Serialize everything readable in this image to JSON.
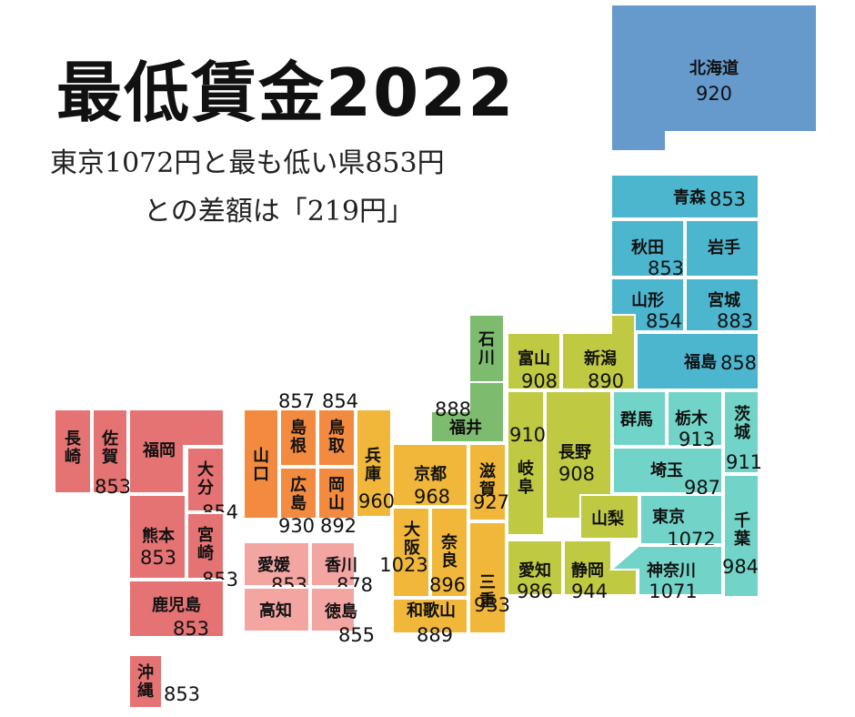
{
  "title": "最低賃金2022",
  "subtitle_line1": "東京1072円と最も低い県853円",
  "subtitle_line2": "との差額は「219円」",
  "colors": {
    "hokkaido": "#6699cc",
    "tohoku": "#4db6cf",
    "kanto": "#72d4c8",
    "chubu": "#bfc941",
    "hokuriku": "#7dbb6e",
    "kinki": "#f0b73a",
    "chugoku": "#f28b3f",
    "shikoku": "#f2a5a1",
    "kyushu": "#e57373"
  },
  "prefectures": [
    {
      "name": "北海道",
      "wage": "920",
      "region": "hokkaido"
    },
    {
      "name": "青森",
      "wage": "853",
      "region": "tohoku"
    },
    {
      "name": "秋田",
      "wage": "853",
      "region": "tohoku"
    },
    {
      "name": "岩手",
      "wage": "",
      "region": "tohoku"
    },
    {
      "name": "山形",
      "wage": "854",
      "region": "tohoku"
    },
    {
      "name": "宮城",
      "wage": "883",
      "region": "tohoku"
    },
    {
      "name": "福島",
      "wage": "858",
      "region": "tohoku"
    },
    {
      "name": "石川",
      "wage": "",
      "region": "hokuriku"
    },
    {
      "name": "富山",
      "wage": "908",
      "region": "chubu"
    },
    {
      "name": "新潟",
      "wage": "890",
      "region": "chubu"
    },
    {
      "name": "福井",
      "wage": "888",
      "region": "hokuriku"
    },
    {
      "name": "岐阜",
      "wage": "910",
      "region": "chubu"
    },
    {
      "name": "長野",
      "wage": "908",
      "region": "chubu"
    },
    {
      "name": "群馬",
      "wage": "",
      "region": "kanto"
    },
    {
      "name": "栃木",
      "wage": "913",
      "region": "kanto"
    },
    {
      "name": "茨城",
      "wage": "911",
      "region": "kanto"
    },
    {
      "name": "埼玉",
      "wage": "987",
      "region": "kanto"
    },
    {
      "name": "山梨",
      "wage": "",
      "region": "chubu"
    },
    {
      "name": "東京",
      "wage": "1072",
      "region": "kanto"
    },
    {
      "name": "千葉",
      "wage": "984",
      "region": "kanto"
    },
    {
      "name": "愛知",
      "wage": "986",
      "region": "chubu"
    },
    {
      "name": "静岡",
      "wage": "944",
      "region": "chubu"
    },
    {
      "name": "神奈川",
      "wage": "1071",
      "region": "kanto"
    },
    {
      "name": "滋賀",
      "wage": "927",
      "region": "kinki"
    },
    {
      "name": "京都",
      "wage": "968",
      "region": "kinki"
    },
    {
      "name": "兵庫",
      "wage": "960",
      "region": "kinki"
    },
    {
      "name": "大阪",
      "wage": "1023",
      "region": "kinki"
    },
    {
      "name": "奈良",
      "wage": "896",
      "region": "kinki"
    },
    {
      "name": "三重",
      "wage": "933",
      "region": "kinki"
    },
    {
      "name": "和歌山",
      "wage": "889",
      "region": "kinki"
    },
    {
      "name": "鳥取",
      "wage": "854",
      "region": "chugoku"
    },
    {
      "name": "島根",
      "wage": "857",
      "region": "chugoku"
    },
    {
      "name": "岡山",
      "wage": "892",
      "region": "chugoku"
    },
    {
      "name": "広島",
      "wage": "930",
      "region": "chugoku"
    },
    {
      "name": "山口",
      "wage": "",
      "region": "chugoku"
    },
    {
      "name": "香川",
      "wage": "878",
      "region": "shikoku"
    },
    {
      "name": "愛媛",
      "wage": "853",
      "region": "shikoku"
    },
    {
      "name": "徳島",
      "wage": "855",
      "region": "shikoku"
    },
    {
      "name": "高知",
      "wage": "",
      "region": "shikoku"
    },
    {
      "name": "福岡",
      "wage": "",
      "region": "kyushu"
    },
    {
      "name": "佐賀",
      "wage": "853",
      "region": "kyushu"
    },
    {
      "name": "長崎",
      "wage": "",
      "region": "kyushu"
    },
    {
      "name": "大分",
      "wage": "854",
      "region": "kyushu"
    },
    {
      "name": "熊本",
      "wage": "853",
      "region": "kyushu"
    },
    {
      "name": "宮崎",
      "wage": "853",
      "region": "kyushu"
    },
    {
      "name": "鹿児島",
      "wage": "853",
      "region": "kyushu"
    },
    {
      "name": "沖縄",
      "wage": "853",
      "region": "kyushu"
    }
  ],
  "unlabeled_wages": [
    {
      "prefecture": "岩手",
      "wage": ""
    },
    {
      "prefecture": "石川",
      "wage": ""
    }
  ]
}
